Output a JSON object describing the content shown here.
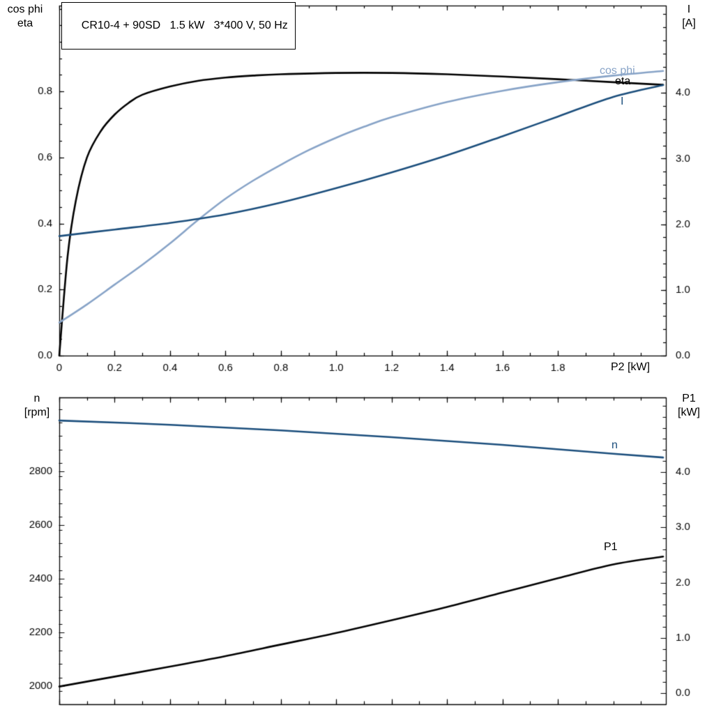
{
  "title_box": {
    "text": "CR10-4 + 90SD   1.5 kW   3*400 V, 50 Hz"
  },
  "labels": {
    "top_left_line1": "cos phi",
    "top_left_line2": "eta",
    "top_right_line1": "I",
    "top_right_line2": "[A]",
    "x_axis": "P2 [kW]",
    "bottom_left_line1": "n",
    "bottom_left_line2": "[rpm]",
    "bottom_right_line1": "P1",
    "bottom_right_line2": "[kW]",
    "curve_cos_phi": "cos phi",
    "curve_eta": "eta",
    "curve_I": "I",
    "curve_n": "n",
    "curve_P1": "P1"
  },
  "colors": {
    "black": "#000000",
    "dark_blue": "#1b4e7c",
    "light_blue": "#87a3c7",
    "frame": "#000000"
  },
  "chart_data": [
    {
      "type": "line",
      "panel": "top",
      "title": "CR10-4 + 90SD   1.5 kW   3*400 V, 50 Hz",
      "x_axis": {
        "label": "P2 [kW]",
        "min": 0,
        "max": 2.19,
        "minor_step": 0.1,
        "major_ticks": [
          0,
          0.2,
          0.4,
          0.6,
          0.8,
          1.0,
          1.2,
          1.4,
          1.6,
          1.8
        ],
        "tick_labels": [
          "0",
          "0.2",
          "0.4",
          "0.6",
          "0.8",
          "1.0",
          "1.2",
          "1.4",
          "1.6",
          "1.8"
        ]
      },
      "y_left": {
        "label": "cos phi / eta",
        "min": 0,
        "max": 1.06,
        "minor_step": 0.05,
        "major_ticks": [
          0,
          0.2,
          0.4,
          0.6,
          0.8
        ],
        "tick_labels": [
          "0.0",
          "0.2",
          "0.4",
          "0.6",
          "0.8"
        ]
      },
      "y_right": {
        "label": "I [A]",
        "min": 0,
        "max": 5.33,
        "minor_step": 0.2,
        "major_ticks": [
          0,
          1,
          2,
          3,
          4
        ],
        "tick_labels": [
          "0.0",
          "1.0",
          "2.0",
          "3.0",
          "4.0"
        ]
      },
      "series": [
        {
          "name": "eta",
          "axis": "left",
          "color": "#000000",
          "x": [
            0,
            0.03,
            0.06,
            0.1,
            0.15,
            0.2,
            0.25,
            0.3,
            0.4,
            0.5,
            0.6,
            0.7,
            0.8,
            1.0,
            1.2,
            1.4,
            1.6,
            1.8,
            2.0,
            2.18
          ],
          "y": [
            0,
            0.3,
            0.47,
            0.6,
            0.68,
            0.73,
            0.765,
            0.79,
            0.815,
            0.832,
            0.842,
            0.848,
            0.852,
            0.856,
            0.856,
            0.852,
            0.845,
            0.837,
            0.828,
            0.82
          ]
        },
        {
          "name": "cos phi",
          "axis": "left",
          "color": "#87a3c7",
          "x": [
            0,
            0.1,
            0.2,
            0.3,
            0.4,
            0.5,
            0.6,
            0.7,
            0.8,
            0.9,
            1.0,
            1.1,
            1.2,
            1.4,
            1.6,
            1.8,
            2.0,
            2.18
          ],
          "y": [
            0.1,
            0.155,
            0.215,
            0.275,
            0.34,
            0.41,
            0.475,
            0.53,
            0.578,
            0.622,
            0.66,
            0.693,
            0.722,
            0.768,
            0.802,
            0.828,
            0.848,
            0.862
          ]
        },
        {
          "name": "I",
          "axis": "right",
          "color": "#1b4e7c",
          "x": [
            0,
            0.2,
            0.4,
            0.6,
            0.8,
            1.0,
            1.2,
            1.4,
            1.6,
            1.8,
            2.0,
            2.18
          ],
          "y": [
            1.82,
            1.92,
            2.02,
            2.15,
            2.33,
            2.55,
            2.79,
            3.05,
            3.34,
            3.64,
            3.94,
            4.12
          ]
        }
      ]
    },
    {
      "type": "line",
      "panel": "bottom",
      "x_axis": {
        "label": "",
        "min": 0,
        "max": 2.19,
        "minor_step": 0.1,
        "major_ticks": [
          0,
          0.2,
          0.4,
          0.6,
          0.8,
          1.0,
          1.2,
          1.4,
          1.6,
          1.8
        ],
        "tick_labels": []
      },
      "y_left": {
        "label": "n [rpm]",
        "min": 1932,
        "max": 3076,
        "minor_step": 50,
        "major_ticks": [
          2000,
          2200,
          2400,
          2600,
          2800
        ],
        "tick_labels": [
          "2000",
          "2200",
          "2400",
          "2600",
          "2800"
        ]
      },
      "y_right": {
        "label": "P1 [kW]",
        "min": -0.2,
        "max": 5.35,
        "minor_step": 0.2,
        "major_ticks": [
          0,
          1,
          2,
          3,
          4
        ],
        "tick_labels": [
          "0.0",
          "1.0",
          "2.0",
          "3.0",
          "4.0"
        ]
      },
      "series": [
        {
          "name": "n",
          "axis": "left",
          "color": "#1b4e7c",
          "x": [
            0,
            0.4,
            0.8,
            1.2,
            1.6,
            2.0,
            2.18
          ],
          "y": [
            2990,
            2974,
            2953,
            2928,
            2899,
            2866,
            2852
          ]
        },
        {
          "name": "P1",
          "axis": "right",
          "color": "#000000",
          "x": [
            0,
            0.2,
            0.4,
            0.6,
            0.8,
            1.0,
            1.2,
            1.4,
            1.6,
            1.8,
            2.0,
            2.18
          ],
          "y": [
            0.12,
            0.3,
            0.48,
            0.67,
            0.88,
            1.09,
            1.32,
            1.56,
            1.82,
            2.08,
            2.33,
            2.47
          ]
        }
      ]
    }
  ]
}
